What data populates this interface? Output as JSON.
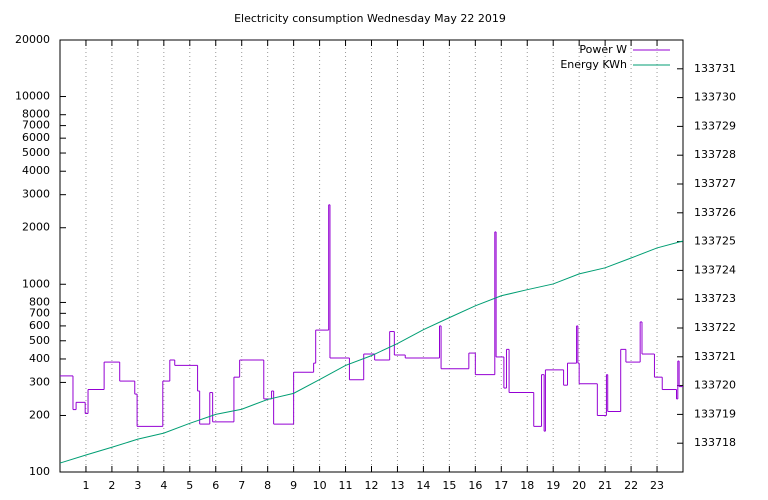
{
  "chart_data": {
    "type": "line",
    "title": "Electricity consumption Wednesday May 22 2019",
    "xlim": [
      0,
      24
    ],
    "xticks": [
      1,
      2,
      3,
      4,
      5,
      6,
      7,
      8,
      9,
      10,
      11,
      12,
      13,
      14,
      15,
      16,
      17,
      18,
      19,
      20,
      21,
      22,
      23
    ],
    "ylim": [
      100,
      20000
    ],
    "ylog": true,
    "yticks": [
      100,
      200,
      300,
      400,
      500,
      600,
      700,
      800,
      1000,
      2000,
      3000,
      4000,
      5000,
      6000,
      7000,
      8000,
      10000,
      20000
    ],
    "y2lim": [
      133717,
      133732
    ],
    "y2ticks": [
      133718,
      133719,
      133720,
      133721,
      133722,
      133723,
      133724,
      133725,
      133726,
      133727,
      133728,
      133729,
      133730,
      133731
    ],
    "grid": "x",
    "legend": "top-right",
    "series": [
      {
        "name": "Power W",
        "color": "#9400d3",
        "step": true,
        "x": [
          0,
          0.5,
          0.62,
          0.97,
          1.08,
          1.7,
          2.3,
          2.88,
          2.97,
          3.96,
          4.23,
          4.42,
          5.3,
          5.38,
          5.77,
          5.88,
          6.7,
          6.92,
          7.85,
          8.15,
          8.23,
          9.0,
          9.77,
          9.85,
          10.35,
          10.4,
          11.15,
          11.7,
          12.12,
          12.7,
          12.88,
          13.3,
          14.62,
          14.68,
          15.75,
          16.0,
          16.75,
          16.8,
          17.1,
          17.2,
          17.3,
          18.25,
          18.55,
          18.65,
          18.7,
          19.4,
          19.55,
          19.9,
          19.95,
          20.0,
          20.7,
          21.05,
          21.1,
          21.6,
          21.8,
          22.35,
          22.42,
          22.9,
          23.2,
          23.75,
          23.8,
          23.85
        ],
        "values": [
          325,
          215,
          235,
          205,
          275,
          385,
          305,
          260,
          175,
          305,
          395,
          370,
          270,
          180,
          265,
          185,
          320,
          395,
          245,
          270,
          180,
          340,
          380,
          570,
          2650,
          405,
          310,
          425,
          395,
          560,
          420,
          405,
          600,
          355,
          430,
          330,
          1900,
          410,
          280,
          450,
          265,
          175,
          330,
          165,
          350,
          290,
          380,
          600,
          380,
          295,
          200,
          330,
          210,
          450,
          385,
          630,
          425,
          320,
          275,
          245,
          390,
          285
        ]
      },
      {
        "name": "Energy KWh",
        "color": "#009e73",
        "axis": "y2",
        "x": [
          0,
          1,
          2,
          3,
          4,
          5,
          6,
          7,
          8,
          9,
          10,
          11,
          12,
          13,
          14,
          15,
          16,
          17,
          18,
          19,
          20,
          21,
          22,
          23,
          24
        ],
        "values": [
          133717.31,
          133717.59,
          133717.86,
          133718.14,
          133718.35,
          133718.69,
          133719.0,
          133719.18,
          133719.52,
          133719.73,
          133720.21,
          133720.7,
          133721.04,
          133721.46,
          133721.94,
          133722.36,
          133722.77,
          133723.12,
          133723.33,
          133723.53,
          133723.88,
          133724.09,
          133724.43,
          133724.78,
          133725.02
        ]
      }
    ]
  }
}
